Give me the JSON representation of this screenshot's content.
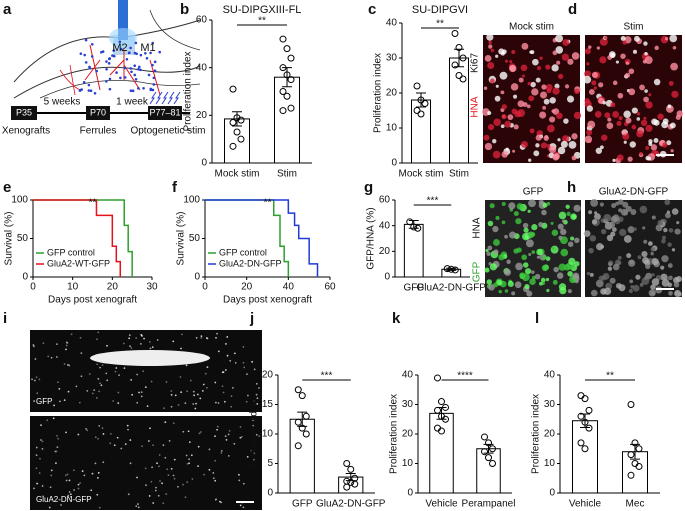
{
  "diagram": {
    "panel": "a",
    "regions": [
      "M2",
      "M1"
    ],
    "timeline": [
      "P35",
      "P70",
      "P77–81"
    ],
    "intervals": [
      "5 weeks",
      "1 week"
    ],
    "events": [
      "Xenografts",
      "Ferrules",
      "Optogenetic stim"
    ]
  },
  "image_panels": [
    {
      "panel": "d",
      "titles": [
        "Mock stim",
        "Stim"
      ],
      "stain_labels": [
        "Ki67",
        "HNA"
      ]
    },
    {
      "panel": "h",
      "titles": [
        "GFP",
        "GluA2-DN-GFP"
      ],
      "stain_labels": [
        "HNA",
        "GFP"
      ]
    },
    {
      "panel": "i",
      "titles": [
        "GFP",
        "GluA2-DN-GFP"
      ]
    }
  ],
  "chart_data": [
    {
      "type": "bar",
      "panel": "b",
      "title": "SU-DIPGXIII-FL",
      "y_label": "Proliferation index",
      "categories": [
        "Mock stim",
        "Stim"
      ],
      "values": [
        18.5,
        36
      ],
      "errors": [
        3,
        4
      ],
      "points": [
        [
          31,
          19,
          18,
          17,
          13,
          10,
          7
        ],
        [
          52,
          48,
          44,
          40,
          37,
          35,
          30,
          28,
          23,
          22
        ]
      ],
      "significance": "**",
      "ylim": [
        0,
        60
      ],
      "yticks": [
        0,
        20,
        40,
        60
      ]
    },
    {
      "type": "bar",
      "panel": "c",
      "title": "SU-DIPGVI",
      "y_label": "Proliferation index",
      "categories": [
        "Mock stim",
        "Stim"
      ],
      "values": [
        18,
        30
      ],
      "errors": [
        2,
        2.5
      ],
      "points": [
        [
          22,
          18,
          17,
          15,
          14
        ],
        [
          37,
          33,
          30,
          28,
          25,
          24
        ]
      ],
      "significance": "**",
      "ylim": [
        0,
        40
      ],
      "yticks": [
        0,
        10,
        20,
        30,
        40
      ]
    },
    {
      "type": "line",
      "panel": "e",
      "x_label": "Days post xenograft",
      "y_label": "Survival (%)",
      "significance": "**",
      "series": [
        {
          "name": "GFP  control",
          "color": "#2ca02c",
          "x": [
            0,
            23,
            23,
            24,
            24,
            25,
            25
          ],
          "values": [
            100,
            100,
            67,
            67,
            33,
            33,
            0
          ]
        },
        {
          "name": "GluA2-WT-GFP",
          "color": "#e3121b",
          "x": [
            0,
            16,
            16,
            20,
            20,
            21,
            21,
            22,
            22
          ],
          "values": [
            100,
            100,
            80,
            80,
            40,
            40,
            20,
            20,
            0
          ]
        }
      ],
      "xlim": [
        0,
        30
      ],
      "xticks": [
        0,
        10,
        20,
        30
      ],
      "ylim": [
        0,
        100
      ],
      "yticks": [
        0,
        50,
        100
      ]
    },
    {
      "type": "line",
      "panel": "f",
      "x_label": "Days post xenograft",
      "y_label": "Survival (%)",
      "significance": "**",
      "series": [
        {
          "name": "GFP control",
          "color": "#2ca02c",
          "x": [
            0,
            33,
            33,
            36,
            36,
            38,
            38,
            40,
            40
          ],
          "values": [
            100,
            100,
            80,
            80,
            40,
            40,
            20,
            20,
            0
          ]
        },
        {
          "name": "GluA2-DN-GFP",
          "color": "#1f3bd6",
          "x": [
            0,
            40,
            40,
            43,
            43,
            45,
            45,
            50,
            50,
            54,
            54
          ],
          "values": [
            100,
            100,
            83,
            83,
            67,
            67,
            50,
            50,
            17,
            17,
            0
          ]
        }
      ],
      "xlim": [
        0,
        60
      ],
      "xticks": [
        0,
        20,
        40,
        60
      ],
      "ylim": [
        0,
        100
      ],
      "yticks": [
        0,
        50,
        100
      ]
    },
    {
      "type": "bar",
      "panel": "g",
      "y_label": "GFP/HNA (%)",
      "categories": [
        "GFP",
        "GluA2-DN-GFP"
      ],
      "values": [
        41,
        6
      ],
      "errors": [
        3,
        0.8
      ],
      "points": [
        [
          43,
          39,
          38
        ],
        [
          6.5,
          6,
          5.5
        ]
      ],
      "significance": "***",
      "ylim": [
        0,
        60
      ],
      "yticks": [
        0,
        20,
        40,
        60
      ]
    },
    {
      "type": "bar",
      "panel": "j",
      "y_label": "Tumour burden",
      "categories": [
        "GFP",
        "GluA2-DN-GFP"
      ],
      "values": [
        12.5,
        2.7
      ],
      "errors": [
        1.2,
        0.6
      ],
      "points": [
        [
          17.5,
          16.5,
          13,
          12,
          11,
          10,
          8
        ],
        [
          5,
          4,
          2.5,
          2,
          1.8,
          1.5,
          1
        ]
      ],
      "significance": "***",
      "ylim": [
        0,
        20
      ],
      "yticks": [
        0,
        5,
        10,
        15,
        20
      ]
    },
    {
      "type": "bar",
      "panel": "k",
      "y_label": "Proliferation index",
      "categories": [
        "Vehicle",
        "Perampanel"
      ],
      "values": [
        27,
        15
      ],
      "errors": [
        2,
        1.5
      ],
      "points": [
        [
          39,
          31,
          29,
          28,
          26,
          25,
          22,
          21
        ],
        [
          19,
          17,
          15,
          14,
          12,
          10
        ]
      ],
      "significance": "****",
      "ylim": [
        0,
        40
      ],
      "yticks": [
        0,
        10,
        20,
        30,
        40
      ]
    },
    {
      "type": "bar",
      "panel": "l",
      "y_label": "Proliferation index",
      "categories": [
        "Vehicle",
        "Mec"
      ],
      "values": [
        24.5,
        14
      ],
      "errors": [
        2.3,
        2.5
      ],
      "points": [
        [
          33,
          32,
          28,
          26,
          24,
          22,
          17,
          15
        ],
        [
          30,
          17,
          15,
          13,
          10,
          9,
          6
        ]
      ],
      "significance": "**",
      "ylim": [
        0,
        40
      ],
      "yticks": [
        0,
        10,
        20,
        30,
        40
      ]
    }
  ]
}
